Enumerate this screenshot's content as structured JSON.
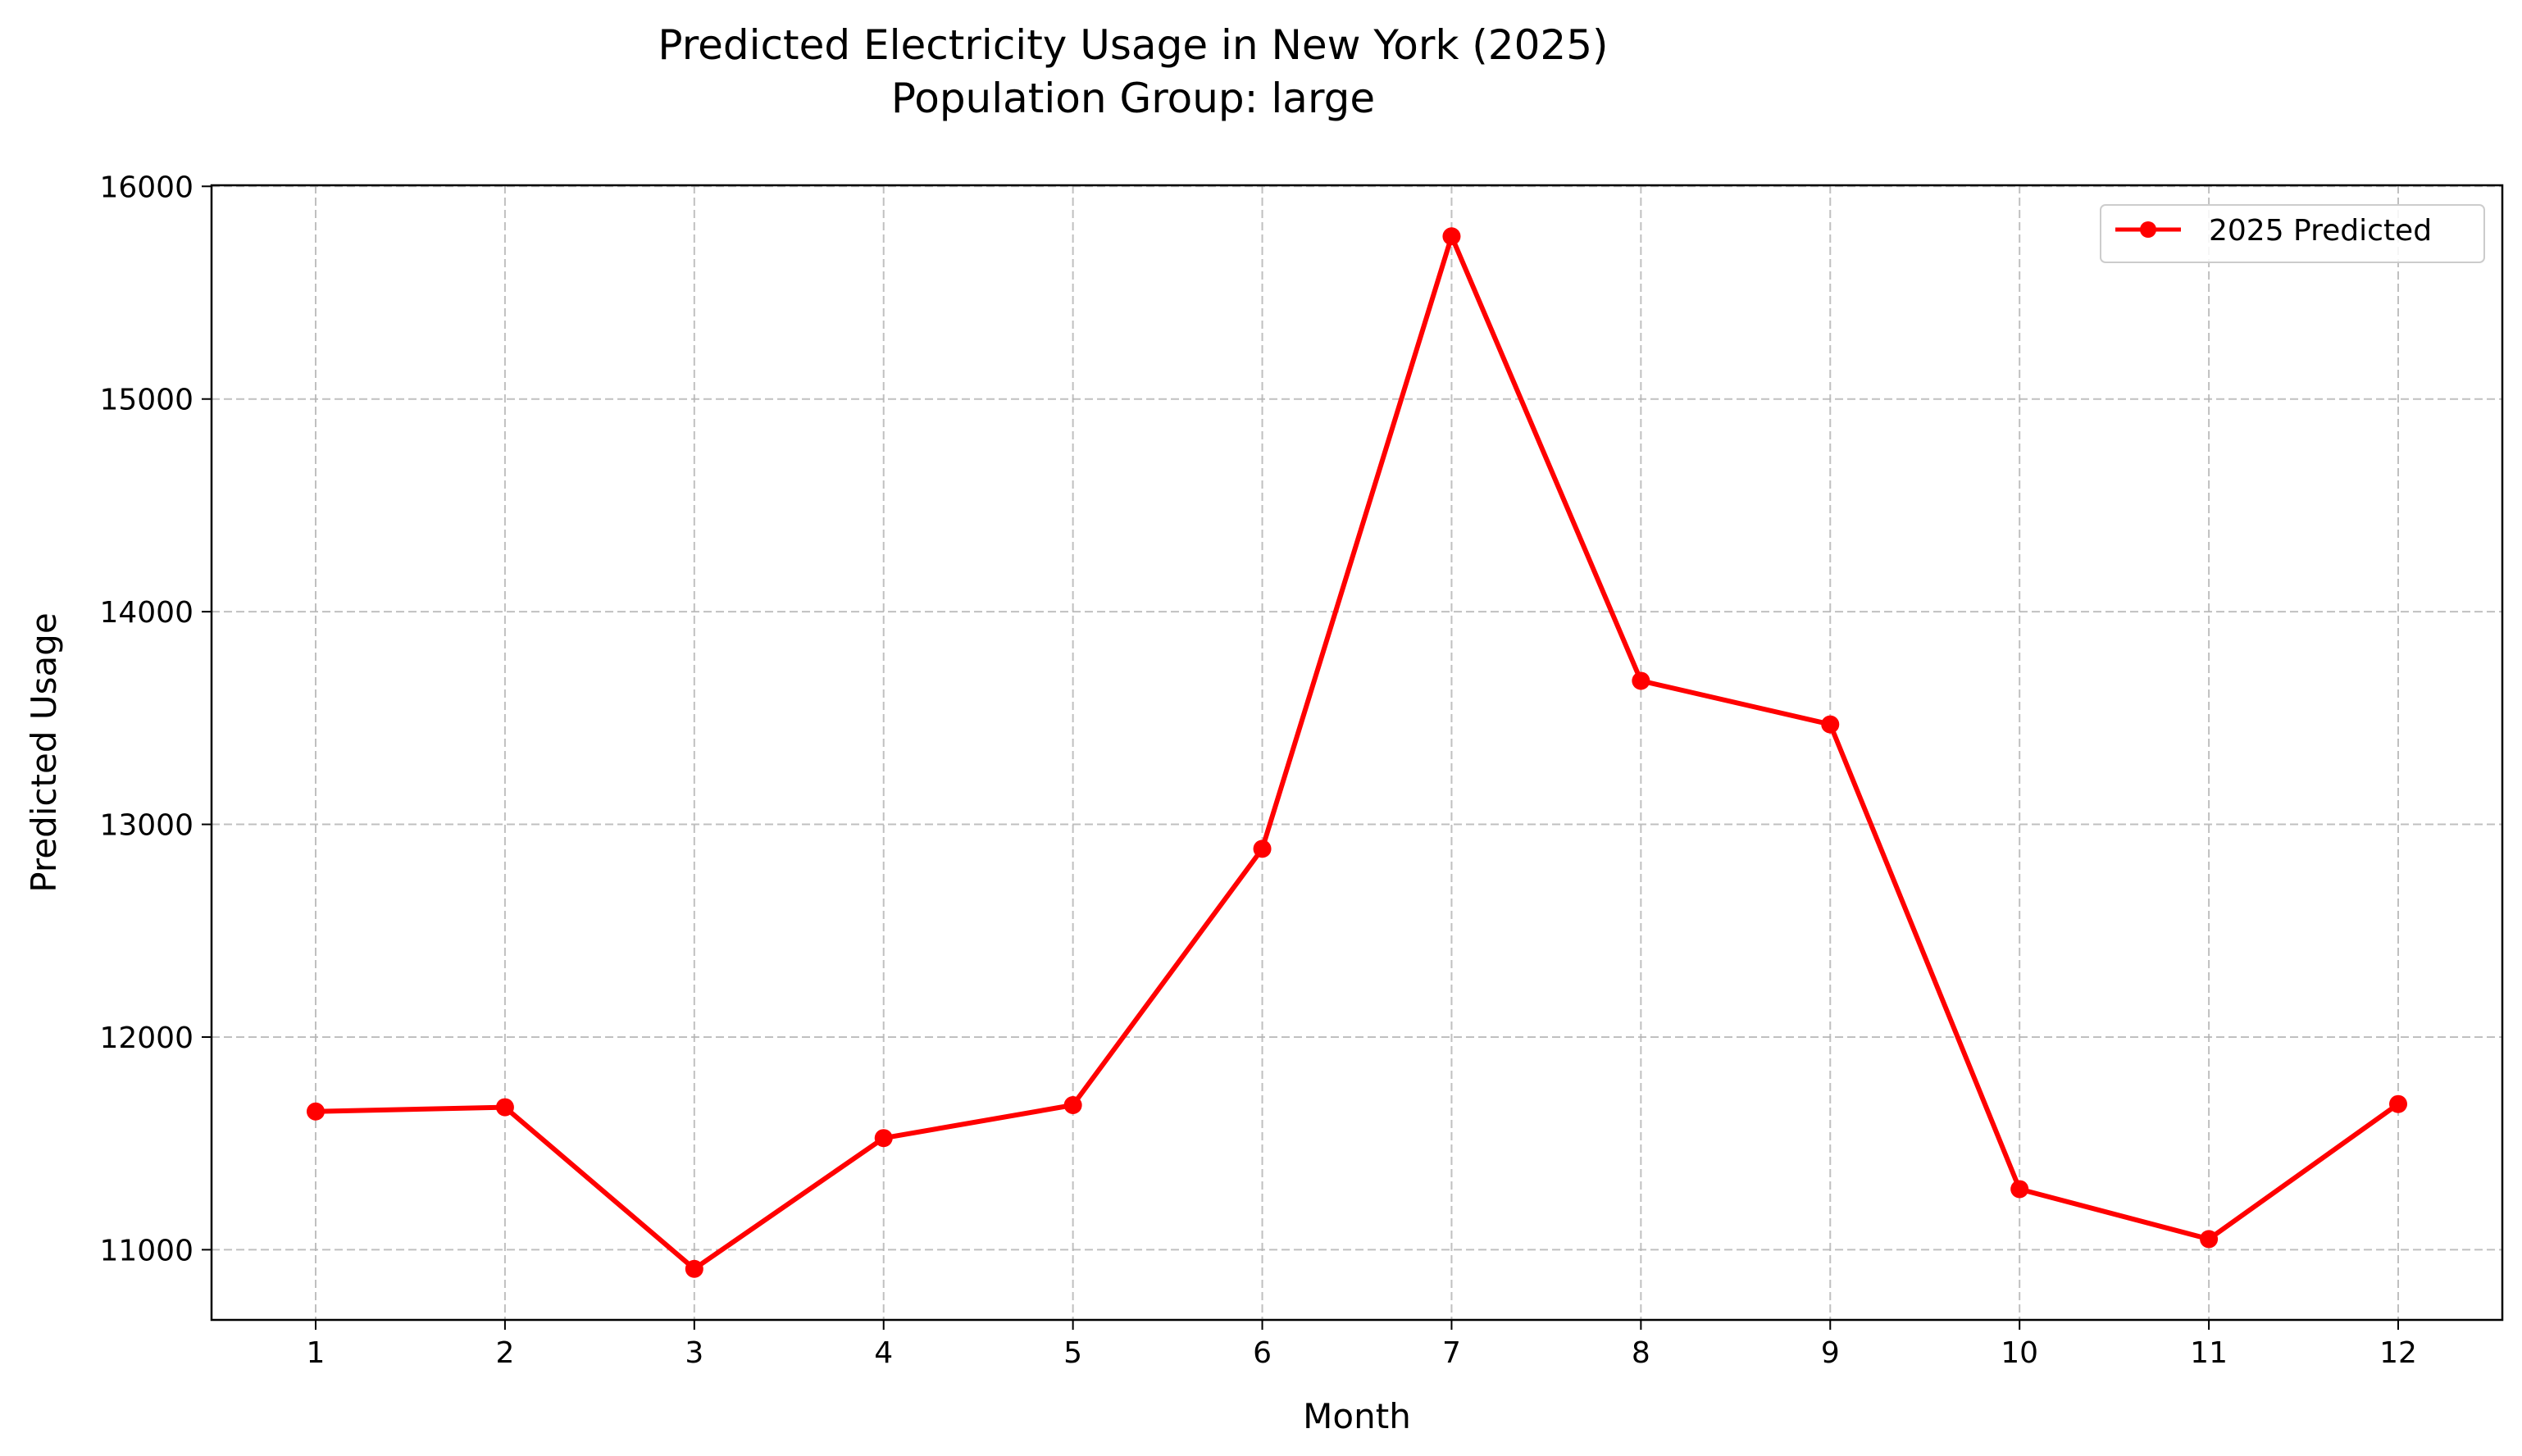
{
  "chart_data": {
    "type": "line",
    "title": "Predicted Electricity Usage in New York (2025)",
    "subtitle": "Population Group: large",
    "xlabel": "Month",
    "ylabel": "Predicted Usage",
    "x": [
      1,
      2,
      3,
      4,
      5,
      6,
      7,
      8,
      9,
      10,
      11,
      12
    ],
    "x_ticks": [
      "1",
      "2",
      "3",
      "4",
      "5",
      "6",
      "7",
      "8",
      "9",
      "10",
      "11",
      "12"
    ],
    "xlim": [
      0.45,
      12.55
    ],
    "y_ticks": [
      11000,
      12000,
      13000,
      14000,
      15000,
      16000
    ],
    "ylim": [
      10670,
      16005
    ],
    "grid": true,
    "legend_position": "upper right",
    "series": [
      {
        "name": "2025 Predicted",
        "color": "#ff0000",
        "marker": "circle",
        "values": [
          11650,
          11670,
          10910,
          11525,
          11680,
          12885,
          15765,
          13675,
          13470,
          11285,
          11050,
          11685
        ]
      }
    ]
  }
}
